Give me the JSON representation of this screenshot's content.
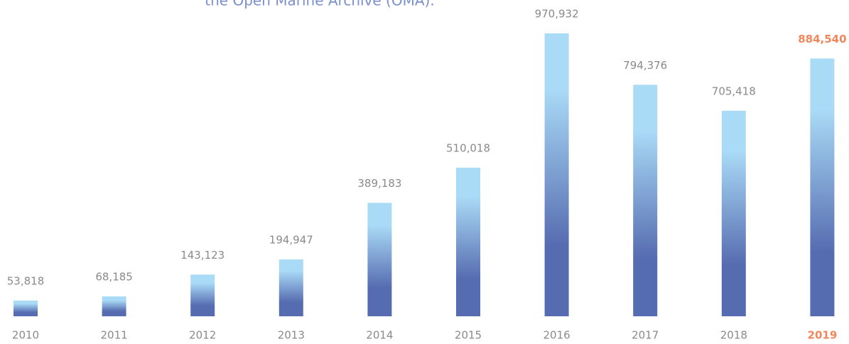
{
  "chart_data": {
    "type": "bar",
    "subtitle": "the Open Marine Archive (OMA).",
    "subtitle_color": "#7b8fcf",
    "categories": [
      "2010",
      "2011",
      "2012",
      "2013",
      "2014",
      "2015",
      "2016",
      "2017",
      "2018",
      "2019"
    ],
    "values": [
      53818,
      68185,
      143123,
      194947,
      389183,
      510018,
      970932,
      794376,
      705418,
      884540
    ],
    "value_labels": [
      "53,818",
      "68,185",
      "143,123",
      "194,947",
      "389,183",
      "510,018",
      "970,932",
      "794,376",
      "705,418",
      "884,540"
    ],
    "color_top": "#a9daf6",
    "color_bottom": "#566cb0",
    "label_color": "#8a8a8a",
    "highlight": {
      "index": 9,
      "color": "#f0875c"
    },
    "ylim": [
      0,
      1000000
    ]
  }
}
